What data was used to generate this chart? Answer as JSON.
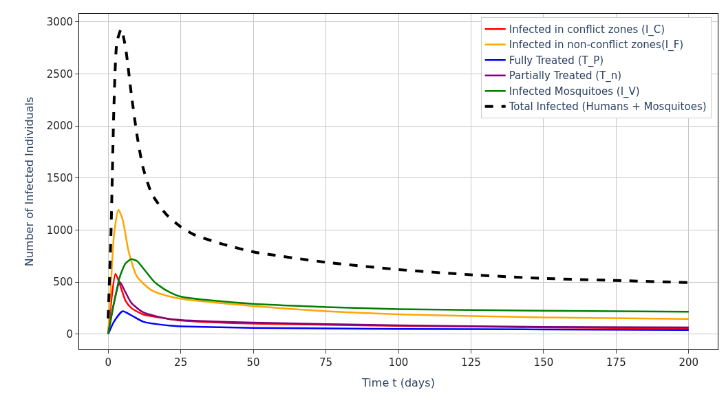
{
  "chart_data": {
    "type": "line",
    "xlabel": "Time t (days)",
    "ylabel": "Number of Infected Individuals",
    "xlim": [
      -10,
      210
    ],
    "ylim": [
      -147,
      3077
    ],
    "xticks": [
      0,
      25,
      50,
      75,
      100,
      125,
      150,
      175,
      200
    ],
    "yticks": [
      0,
      500,
      1000,
      1500,
      2000,
      2500,
      3000
    ],
    "grid": true,
    "legend": "top right",
    "series": [
      {
        "name": "Infected in conflict zones (I_C)",
        "color": "#ff0000",
        "x": [
          0,
          1,
          2.5,
          4,
          6,
          8,
          12,
          20,
          25,
          50,
          100,
          150,
          200
        ],
        "values": [
          0,
          300,
          580,
          480,
          320,
          250,
          190,
          150,
          130,
          100,
          80,
          65,
          55
        ]
      },
      {
        "name": "Infected in non-conflict zones(I_F)",
        "color": "#ffa500",
        "x": [
          0,
          1,
          2,
          3.5,
          5,
          7,
          10,
          15,
          20,
          25,
          50,
          75,
          100,
          150,
          200
        ],
        "values": [
          0,
          500,
          950,
          1195,
          1100,
          800,
          550,
          420,
          370,
          340,
          270,
          220,
          190,
          160,
          145
        ]
      },
      {
        "name": "Fully Treated (T_P)",
        "color": "#0000ff",
        "x": [
          0,
          2,
          5,
          8,
          12,
          20,
          25,
          50,
          100,
          150,
          200
        ],
        "values": [
          0,
          120,
          220,
          180,
          120,
          85,
          75,
          60,
          50,
          45,
          40
        ]
      },
      {
        "name": "Partially Treated (T_n)",
        "color": "#800080",
        "x": [
          0,
          2,
          4,
          6,
          8,
          12,
          20,
          25,
          50,
          100,
          150,
          200
        ],
        "values": [
          0,
          300,
          500,
          400,
          300,
          210,
          150,
          135,
          110,
          85,
          70,
          65
        ]
      },
      {
        "name": "Infected Mosquitoes (I_V)",
        "color": "#008000",
        "x": [
          0,
          2,
          4,
          6,
          8,
          10,
          13,
          16,
          20,
          25,
          50,
          75,
          100,
          150,
          200
        ],
        "values": [
          0,
          300,
          550,
          680,
          720,
          700,
          600,
          500,
          420,
          360,
          290,
          260,
          240,
          225,
          215
        ]
      },
      {
        "name": "Total Infected (Humans + Mosquitoes)",
        "color": "#000000",
        "line_style": "dashed",
        "x": [
          0,
          1,
          2,
          3,
          4.5,
          6,
          8,
          10,
          12,
          15,
          20,
          25,
          30,
          40,
          50,
          75,
          100,
          125,
          150,
          175,
          200
        ],
        "values": [
          150,
          1000,
          2200,
          2800,
          2930,
          2750,
          2300,
          1900,
          1600,
          1350,
          1150,
          1030,
          950,
          860,
          790,
          690,
          620,
          570,
          535,
          515,
          495
        ]
      }
    ]
  }
}
